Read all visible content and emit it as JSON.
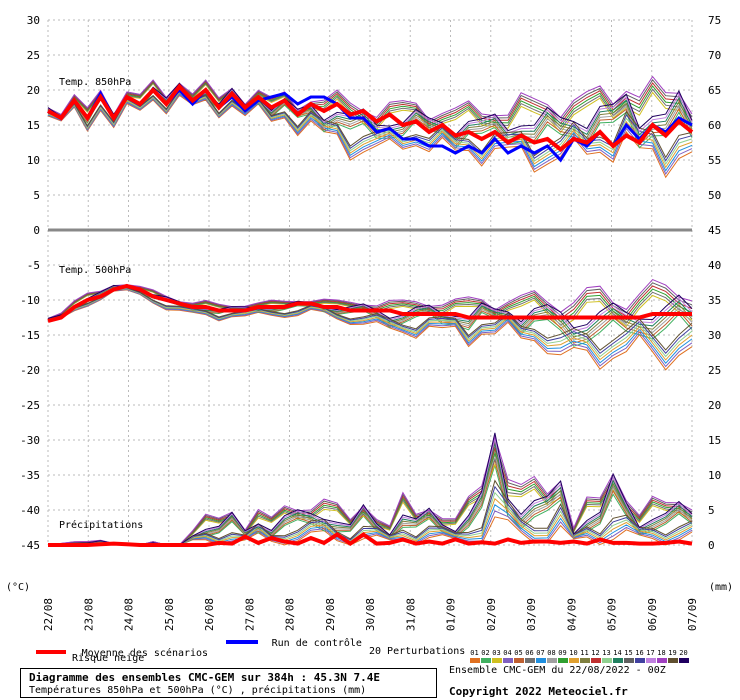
{
  "chart_data": {
    "type": "line",
    "caption_title": "Diagramme des ensembles CMC-GEM sur 384h : 45.3N 7.4E",
    "caption_sub": "Températures 850hPa et 500hPa (°C) , précipitations (mm)",
    "ensemble_info": "Ensemble CMC-GEM du 22/08/2022 - 00Z",
    "copyright": "Copyright 2022 Meteociel.fr",
    "panel_labels": [
      "Temp. 850hPa",
      "Temp. 500hPa",
      "Précipitations"
    ],
    "left_axis_unit": "(°C)",
    "right_axis_unit": "(mm)",
    "left_ticks": [
      30,
      25,
      20,
      15,
      10,
      5,
      0,
      -5,
      -10,
      -15,
      -20,
      -25,
      -30,
      -35,
      -40,
      -45
    ],
    "right_ticks": [
      75,
      70,
      65,
      60,
      55,
      50,
      45,
      40,
      35,
      30,
      25,
      20,
      15,
      10,
      5,
      0
    ],
    "x_dates": [
      "22/08",
      "23/08",
      "24/08",
      "25/08",
      "26/08",
      "27/08",
      "28/08",
      "29/08",
      "30/08",
      "31/08",
      "01/09",
      "02/09",
      "03/09",
      "04/09",
      "05/09",
      "06/09",
      "07/09"
    ],
    "grid": true,
    "legend": {
      "mean_label": "Moyenne des scénarios",
      "snow_label": "Risque neige",
      "control_label": "Run de contrôle",
      "perturbations_label": "20 Perturbations",
      "perturbation_ids": [
        "01",
        "02",
        "03",
        "04",
        "05",
        "06",
        "07",
        "08",
        "09",
        "10",
        "11",
        "12",
        "13",
        "14",
        "15",
        "16",
        "17",
        "18",
        "19",
        "20"
      ],
      "mean_color": "#ff0000",
      "control_color": "#0000ff",
      "perturbation_colors": [
        "#e07020",
        "#40b060",
        "#d0c020",
        "#8060c0",
        "#c06030",
        "#707070",
        "#2090e0",
        "#a0a0a0",
        "#30a030",
        "#e0a030",
        "#808040",
        "#c03030",
        "#90d090",
        "#208060",
        "#606060",
        "#4040a0",
        "#c080e0",
        "#a040c0",
        "#605030",
        "#200060"
      ]
    },
    "t850": {
      "mean": [
        17,
        16,
        18.5,
        16,
        19,
        16,
        19,
        18,
        20,
        18,
        20.5,
        18.5,
        20,
        17.5,
        19.5,
        17.5,
        19,
        17.5,
        18.5,
        16.5,
        18,
        17,
        18,
        16.5,
        17,
        15.5,
        16.5,
        15,
        15.5,
        14,
        15,
        13.5,
        14,
        13,
        14,
        12.5,
        13.5,
        12.5,
        13,
        11.5,
        13,
        12.5,
        14,
        12,
        13.5,
        12.5,
        15,
        13.5,
        15.5,
        14
      ],
      "control": [
        17,
        16,
        18.5,
        16,
        19.5,
        16,
        19,
        18,
        20,
        18,
        20,
        18,
        20,
        17.5,
        19,
        17,
        18.5,
        19,
        19.5,
        18,
        19,
        19,
        18,
        16,
        16,
        14,
        14.5,
        13,
        13,
        12,
        12,
        11,
        12,
        11,
        13,
        11,
        12,
        11,
        12,
        10,
        13,
        12,
        14,
        12,
        15,
        13,
        15,
        14,
        16,
        15
      ],
      "min": [
        16,
        15,
        17,
        14,
        17,
        14,
        17,
        16.5,
        18.5,
        16.5,
        18.5,
        17,
        18,
        16,
        17.5,
        15.5,
        17,
        15,
        16,
        13,
        14,
        12,
        13,
        10,
        10,
        9.5,
        11,
        11,
        12,
        10,
        11,
        9.5,
        11,
        9,
        10,
        9,
        10,
        8,
        9,
        8,
        10,
        9,
        11,
        9,
        11,
        8,
        10,
        7.5,
        9,
        8
      ],
      "max": [
        18,
        17,
        19.5,
        17.5,
        20.5,
        17.5,
        20.5,
        19.5,
        21.5,
        19.5,
        22,
        20,
        21.5,
        19,
        21,
        19,
        20.5,
        19,
        20,
        18.5,
        20,
        19.5,
        20,
        19,
        19.5,
        18.5,
        19,
        18.5,
        19,
        18,
        18.5,
        18,
        18.5,
        18,
        19,
        18.5,
        20,
        19,
        20,
        19.5,
        20.5,
        20,
        21,
        20.5,
        23.5,
        21,
        22,
        20.5,
        23,
        20
      ]
    },
    "t500": {
      "mean": [
        -13,
        -12.5,
        -11,
        -10,
        -9.5,
        -8.5,
        -8,
        -8.5,
        -9.5,
        -10,
        -10.5,
        -11,
        -11,
        -11.5,
        -11.5,
        -11.5,
        -11,
        -11,
        -11,
        -10.5,
        -10.5,
        -11,
        -11,
        -11.5,
        -11.5,
        -11.5,
        -11.5,
        -12,
        -12,
        -12,
        -12,
        -12,
        -12.5,
        -12.5,
        -12.5,
        -12.5,
        -12.5,
        -12.5,
        -12.5,
        -12.5,
        -12.5,
        -12.5,
        -12.5,
        -12.5,
        -12.5,
        -12.5,
        -12,
        -12,
        -12,
        -12
      ],
      "min": [
        -13,
        -13,
        -12,
        -11,
        -10,
        -9,
        -9,
        -9.5,
        -10.5,
        -11.5,
        -12,
        -12.5,
        -12.5,
        -13,
        -12.5,
        -13,
        -12.5,
        -12.5,
        -12.5,
        -12.5,
        -12,
        -12.5,
        -13,
        -13.5,
        -14,
        -14.5,
        -15.5,
        -15,
        -15.5,
        -14.5,
        -16,
        -15,
        -17,
        -15,
        -16,
        -15,
        -17,
        -16,
        -18,
        -20.5,
        -20.5,
        -19,
        -20,
        -19,
        -20.5,
        -18,
        -19,
        -20,
        -19,
        -20.5
      ],
      "max": [
        -12.5,
        -11.5,
        -10,
        -9,
        -8.5,
        -7.5,
        -7.5,
        -8,
        -8.5,
        -9,
        -9.5,
        -10,
        -10,
        -10.5,
        -10.5,
        -10,
        -10,
        -10,
        -10,
        -9.5,
        -9.5,
        -9.5,
        -10,
        -10,
        -9.5,
        -9.5,
        -9.5,
        -10,
        -9.5,
        -9.5,
        -9,
        -9.5,
        -9.5,
        -9,
        -9.5,
        -9,
        -9,
        -8.5,
        -8.5,
        -8,
        -8,
        -8,
        -7.5,
        -8,
        -7.5,
        -7.5,
        -7,
        -7,
        -6.5,
        -6
      ]
    },
    "precip": {
      "mean": [
        0,
        0,
        0,
        0,
        0.1,
        0.2,
        0.1,
        0,
        0,
        0,
        0,
        0,
        0,
        0.3,
        0.2,
        1.2,
        0.3,
        1,
        0.5,
        0.2,
        1,
        0.3,
        1.5,
        0.2,
        1.5,
        0.2,
        0.3,
        0.8,
        0.2,
        0.5,
        0.2,
        0.8,
        0.2,
        0.4,
        0.2,
        0.8,
        0.3,
        0.5,
        0.5,
        0.3,
        0.5,
        0.2,
        0.8,
        0.3,
        0.3,
        0.2,
        0.2,
        0.3,
        0.5,
        0.2
      ],
      "max": [
        0,
        0.3,
        0.5,
        0.5,
        0.8,
        0.3,
        0.2,
        0,
        0.5,
        0,
        0,
        2.5,
        4.5,
        4,
        6,
        3,
        6,
        4,
        6,
        6.5,
        7,
        7.5,
        6,
        4,
        7.5,
        5,
        3,
        7.5,
        5,
        7,
        5,
        4,
        7,
        10,
        22,
        12,
        9,
        10,
        9,
        13,
        3,
        7,
        7,
        13,
        9,
        5,
        7,
        6.5,
        8,
        7
      ]
    }
  }
}
